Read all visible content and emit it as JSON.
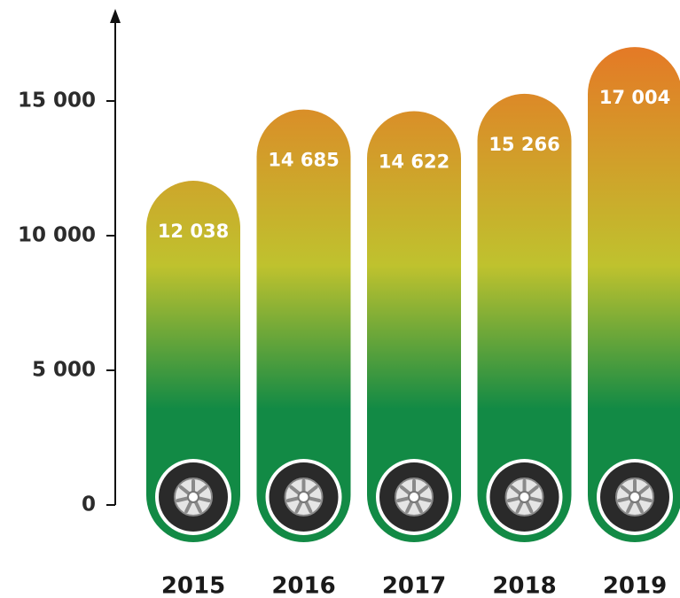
{
  "chart_data": {
    "type": "bar",
    "categories": [
      "2015",
      "2016",
      "2017",
      "2018",
      "2019"
    ],
    "values": [
      12038,
      14685,
      14622,
      15266,
      17004
    ],
    "value_labels": [
      "12 038",
      "14 685",
      "14 622",
      "15 266",
      "17 004"
    ],
    "colors": [
      "#128a45",
      "#bfc22e",
      "#e47a26"
    ],
    "ylim": [
      0,
      18000
    ],
    "yticks": [
      0,
      {
        "value": 5000,
        "label": "5 000"
      },
      {
        "value": 10000,
        "label": "10 000"
      },
      {
        "value": 15000,
        "label": "15 000"
      }
    ]
  }
}
